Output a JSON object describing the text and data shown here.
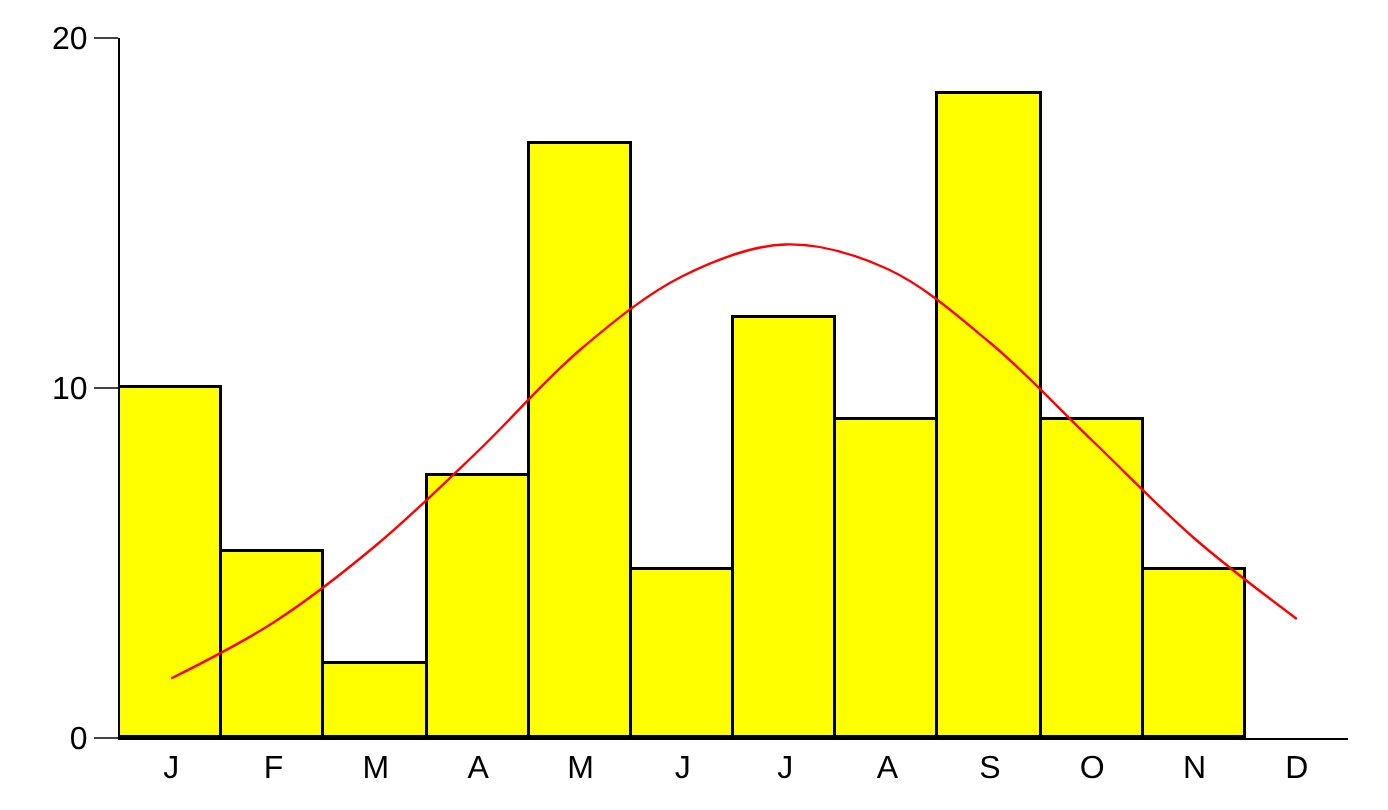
{
  "chart_data": {
    "type": "bar",
    "categories": [
      "J",
      "F",
      "M",
      "A",
      "M",
      "J",
      "J",
      "A",
      "S",
      "O",
      "N",
      "D"
    ],
    "series": [
      {
        "color": "#ffff00",
        "values": [
          10.0,
          5.3,
          2.1,
          7.5,
          17.0,
          4.8,
          12.0,
          9.1,
          18.4,
          9.1,
          4.8,
          null
        ]
      },
      {
        "type": "line",
        "color": "#ff0000",
        "values": [
          1.7,
          3.3,
          5.5,
          8.2,
          11.1,
          13.2,
          14.1,
          13.4,
          11.3,
          8.5,
          5.7,
          3.4
        ]
      }
    ],
    "ylim": [
      0,
      20
    ],
    "yticks": [
      0,
      10,
      20
    ]
  }
}
